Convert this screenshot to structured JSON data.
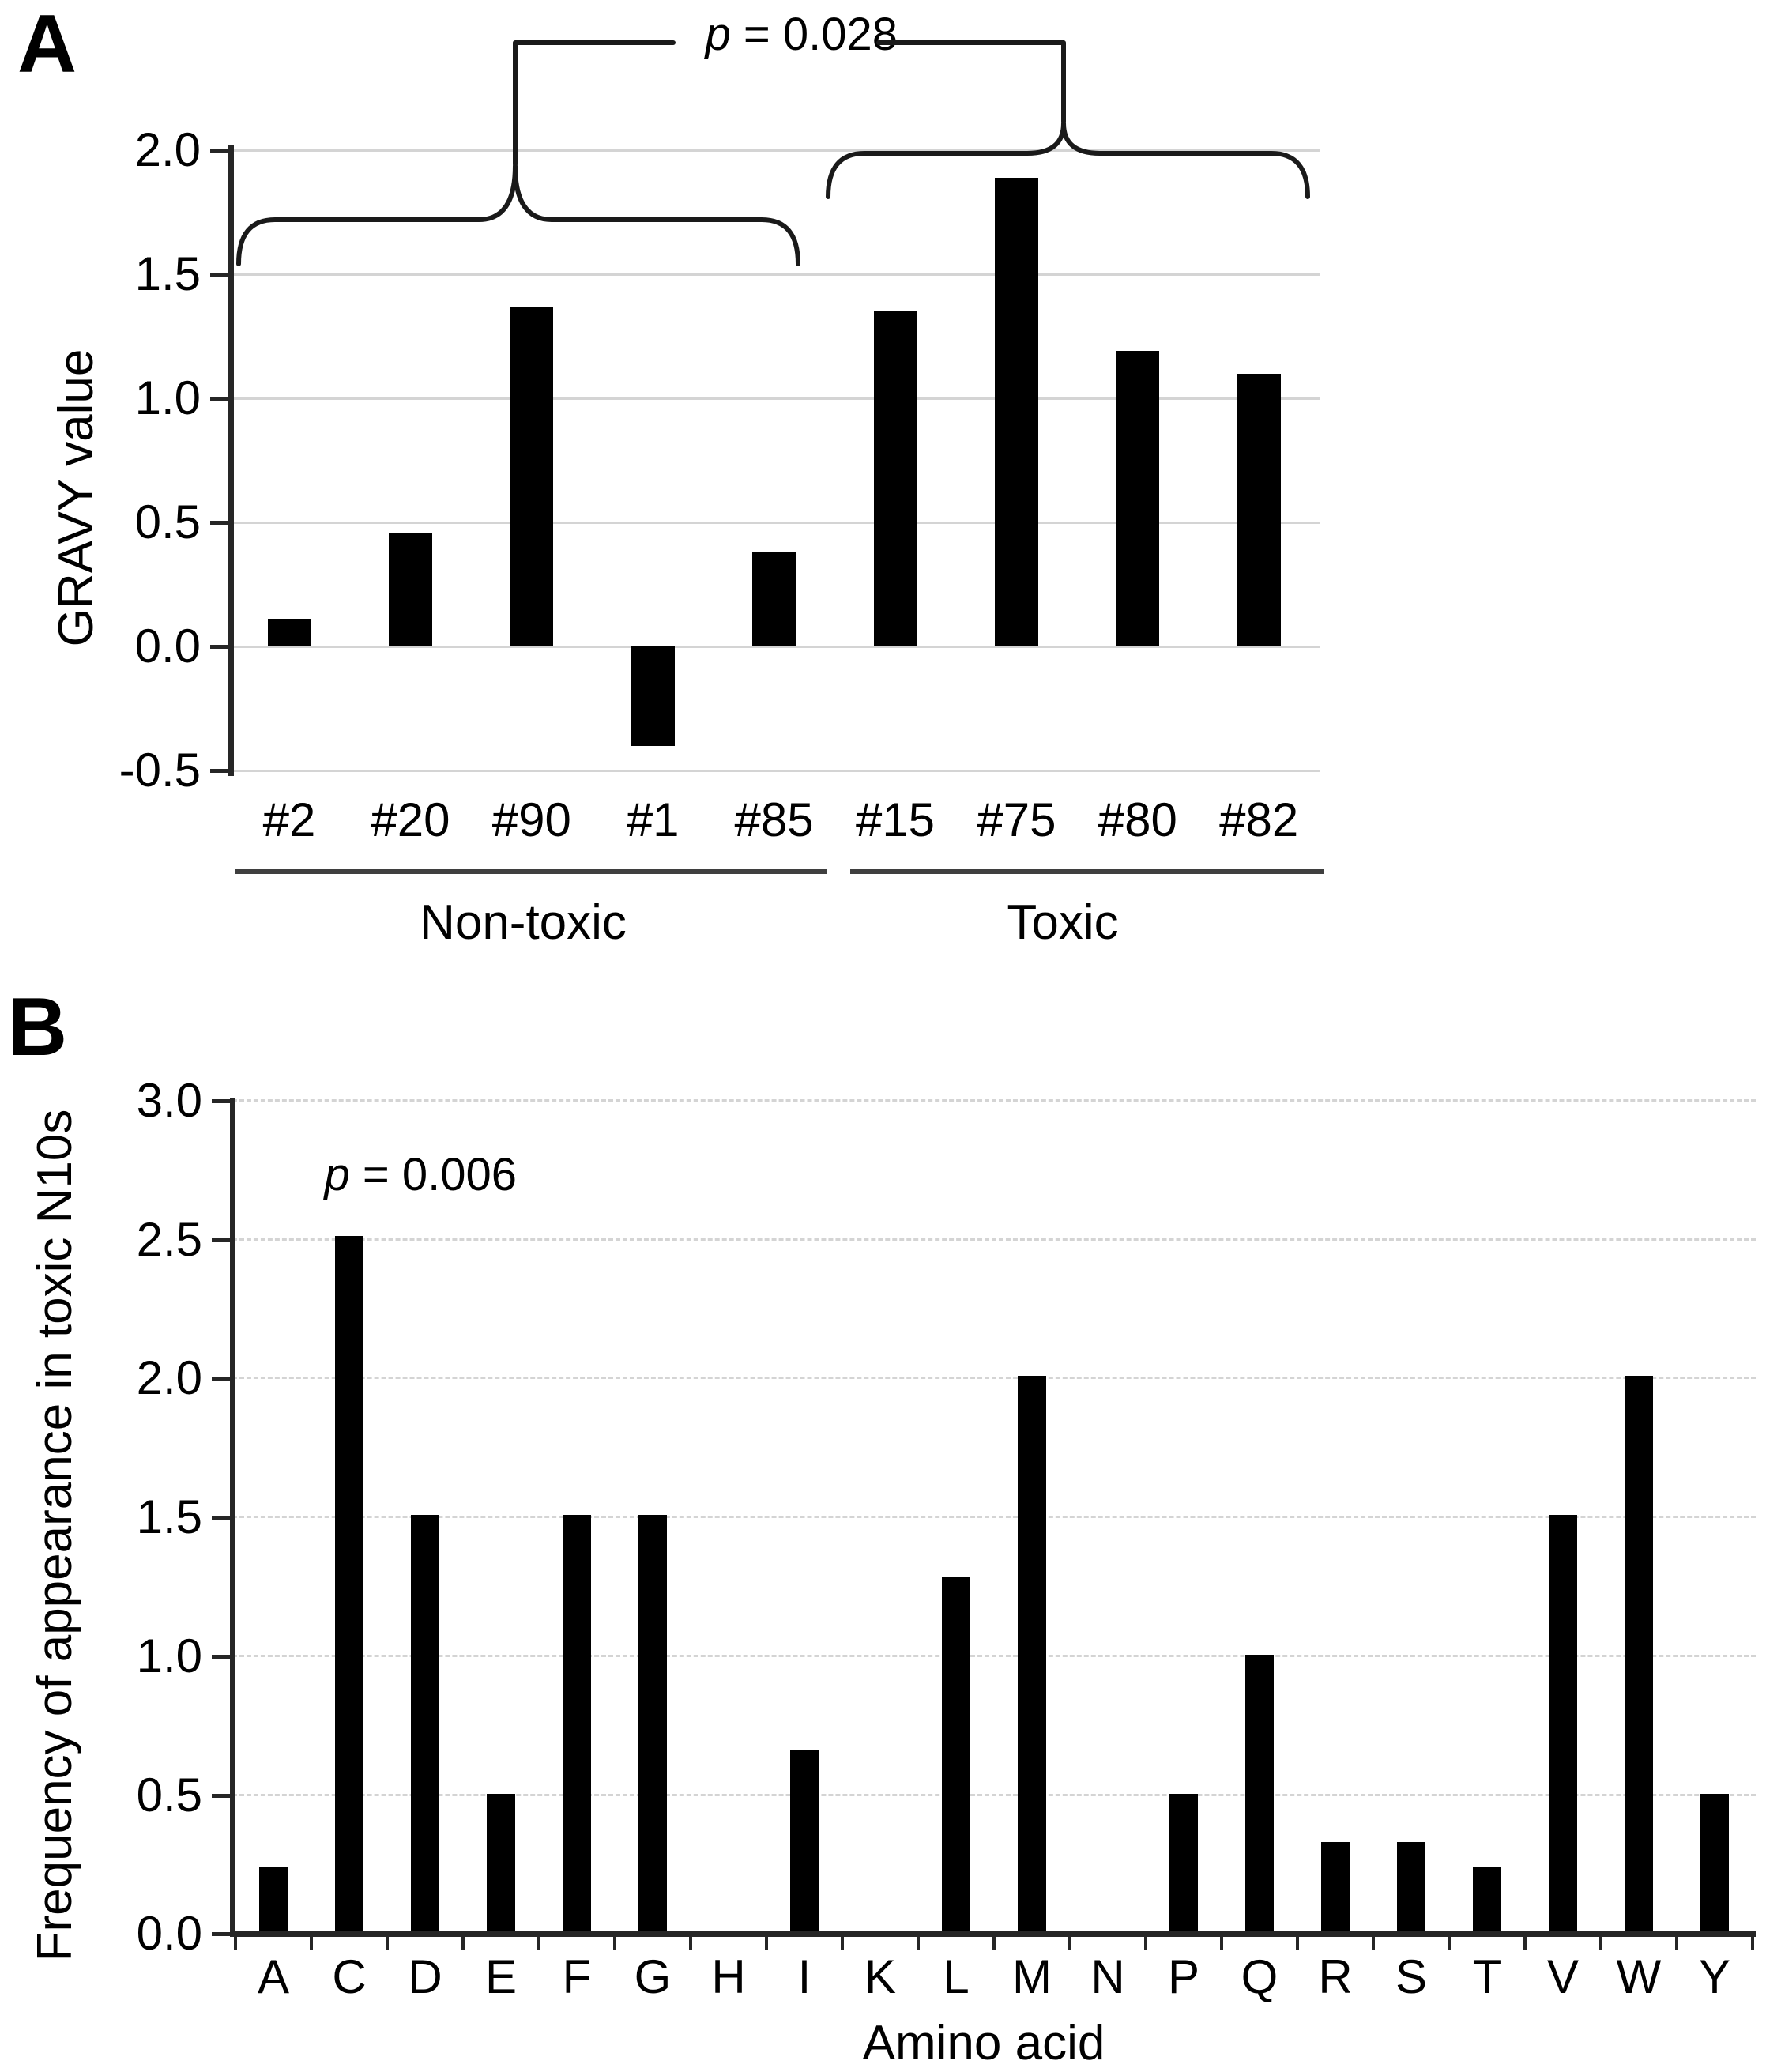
{
  "chart_data": [
    {
      "type": "bar",
      "panel_label": "A",
      "title": "",
      "categories": [
        "#2",
        "#20",
        "#90",
        "#1",
        "#85",
        "#15",
        "#75",
        "#80",
        "#82"
      ],
      "values": [
        0.11,
        0.46,
        1.37,
        -0.4,
        0.38,
        1.35,
        1.89,
        1.19,
        1.1
      ],
      "xlabel": "",
      "ylabel": "GRAVY value",
      "ylim": [
        -0.5,
        2.0
      ],
      "ytick_step": 0.5,
      "yticks": [
        "2.0",
        "1.5",
        "1.0",
        "0.5",
        "0.0",
        "-0.5"
      ],
      "grid": "solid",
      "legend": "none",
      "bar_color": "#000000",
      "annotation": {
        "sym": "p",
        "rest": " = 0.028"
      },
      "groups": [
        {
          "label": "Non-toxic",
          "categories": [
            "#2",
            "#20",
            "#90",
            "#1",
            "#85"
          ]
        },
        {
          "label": "Toxic",
          "categories": [
            "#15",
            "#75",
            "#80",
            "#82"
          ]
        }
      ]
    },
    {
      "type": "bar",
      "panel_label": "B",
      "title": "",
      "categories": [
        "A",
        "C",
        "D",
        "E",
        "F",
        "G",
        "H",
        "I",
        "K",
        "L",
        "M",
        "N",
        "P",
        "Q",
        "R",
        "S",
        "T",
        "V",
        "W",
        "Y"
      ],
      "values": [
        0.24,
        2.5,
        1.5,
        0.5,
        1.5,
        1.5,
        0,
        0.66,
        0,
        1.28,
        2.0,
        0,
        0.5,
        1.0,
        0.33,
        0.33,
        0.24,
        1.5,
        2.0,
        0.5
      ],
      "xlabel": "Amino acid",
      "ylabel": "Frequency of appearance in toxic N10s",
      "ylim": [
        0,
        3.0
      ],
      "ytick_step": 0.5,
      "yticks": [
        "3.0",
        "2.5",
        "2.0",
        "1.5",
        "1.0",
        "0.5",
        "0.0"
      ],
      "grid": "dashed",
      "legend": "none",
      "bar_color": "#000000",
      "annotation": {
        "sym": "p",
        "rest": " = 0.006"
      }
    }
  ],
  "colors": {
    "bar": "#000000",
    "axis": "#262626",
    "gridline": "#d4d4d4",
    "group_underline": "#3f3f3f",
    "brace": "#1a1a1a"
  }
}
